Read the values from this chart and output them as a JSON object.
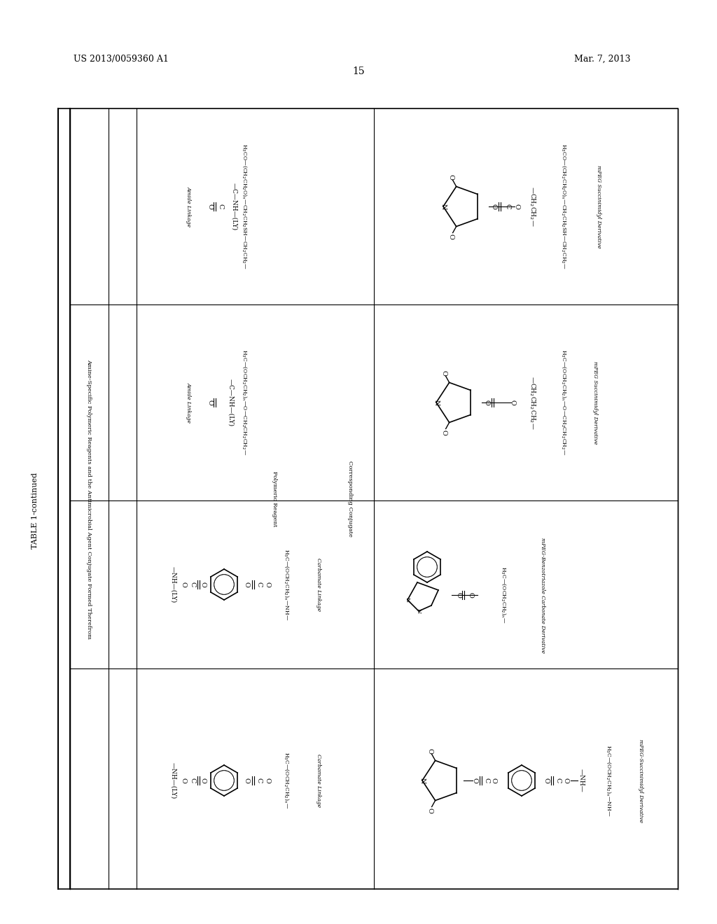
{
  "page_number": "15",
  "patent_number": "US 2013/0059360 A1",
  "patent_date": "Mar. 7, 2013",
  "table_title": "TABLE 1-continued",
  "col_header": "Amine-Specific Polymeric Reagents and the Antimicrobial Agent Conjugate Formed Therefrom",
  "col1_header": "Polymeric Reagent",
  "col2_header": "Corresponding Conjugate",
  "background_color": "#ffffff",
  "text_color": "#000000",
  "line_color": "#000000",
  "row1_left_chain": "H$_3$CO—(CH$_2$CH$_2$O)$_n$—CH$_2$CH$_2$SH—CH$_2$CH$_2$—",
  "row1_left_label": "mPEG Succinimidyl Derivative",
  "row1_right_chain": "H$_3$CO—(CH$_2$CH$_2$O)$_n$—CH$_2$CH$_2$SH—CH$_2$CH$_2$—",
  "row1_right_label": "Amide Linkage",
  "row2_left_chain": "H$_3$C—(OCH$_2$CH$_2$)$_n$—O—CH$_2$CH$_2$CH$_2$—",
  "row2_left_label": "mPEG Succinimidyl Derivative",
  "row2_right_chain": "H$_3$C—(OCH$_2$CH$_2$)$_n$—O—CH$_2$CH$_2$CH$_2$—",
  "row2_right_label": "Amide Linkage",
  "row3_left_chain": "H$_3$C—(OCH$_2$CH$_2$)$_n$—",
  "row3_left_label": "mPEG-Benzotriazole Carbonate Derivative",
  "row3_right_chain": "H$_3$C—(OCH$_2$CH$_2$)$_n$—",
  "row3_right_label": "Carbamate Linkage",
  "row4_left_chain": "H$_3$C—(OCH$_2$CH$_2$)$_n$—NH—",
  "row4_left_label": "mPEG-Succinimidyl Derivative",
  "row4_right_chain": "H$_3$C—(OCH$_2$CH$_2$)$_n$—",
  "row4_right_label": "Carbamate Linkage"
}
